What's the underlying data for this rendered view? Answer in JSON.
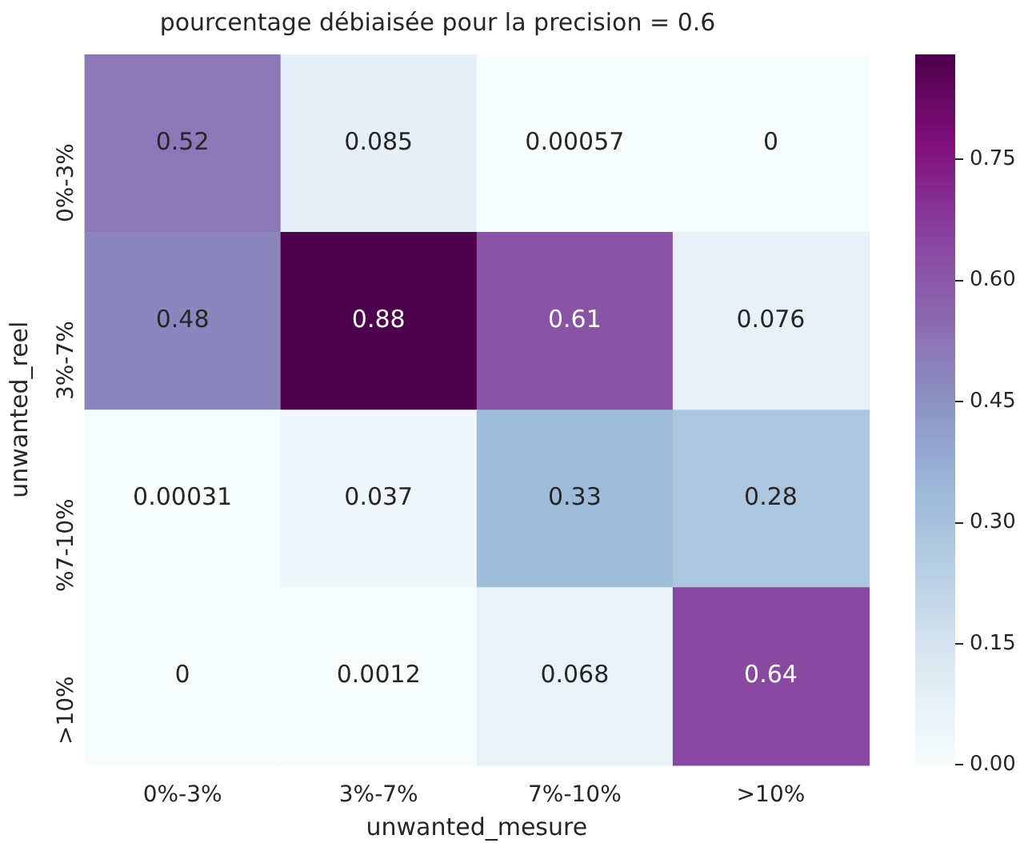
{
  "chart_data": {
    "type": "heatmap",
    "title": "pourcentage débiaisée pour la precision = 0.6",
    "xlabel": "unwanted_mesure",
    "ylabel": "unwanted_reel",
    "categories": [
      "0%-3%",
      "3%-7%",
      "7%-10%",
      ">10%"
    ],
    "y_categories": [
      "0%-3%",
      "3%-7%",
      "%7-10%",
      ">10%"
    ],
    "cells": [
      [
        0.52,
        0.085,
        0.00057,
        0
      ],
      [
        0.48,
        0.88,
        0.61,
        0.076
      ],
      [
        0.00031,
        0.037,
        0.33,
        0.28
      ],
      [
        0,
        0.0012,
        0.068,
        0.64
      ]
    ],
    "clim": [
      0,
      0.88
    ],
    "cticks": [
      {
        "value": 0,
        "label": "0.00"
      },
      {
        "value": 0.15,
        "label": "0.15"
      },
      {
        "value": 0.3,
        "label": "0.30"
      },
      {
        "value": 0.45,
        "label": "0.45"
      },
      {
        "value": 0.6,
        "label": "0.60"
      },
      {
        "value": 0.75,
        "label": "0.75"
      }
    ],
    "data_labels": true
  }
}
